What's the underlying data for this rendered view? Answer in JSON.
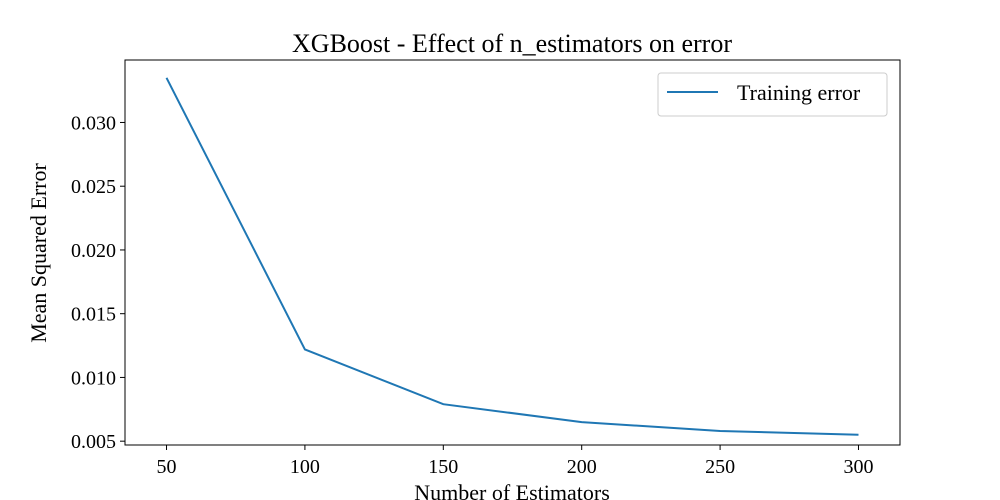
{
  "chart_data": {
    "type": "line",
    "title": "XGBoost - Effect of n_estimators on error",
    "xlabel": "Number of Estimators",
    "ylabel": "Mean Squared Error",
    "x": [
      50,
      100,
      150,
      200,
      250,
      300
    ],
    "series": [
      {
        "name": "Training error",
        "values": [
          0.0335,
          0.0122,
          0.0079,
          0.0065,
          0.0058,
          0.0055
        ],
        "color": "#1f77b4"
      }
    ],
    "xlim": [
      35,
      315
    ],
    "ylim": [
      0.0047,
      0.0349
    ],
    "xticks": [
      50,
      100,
      150,
      200,
      250,
      300
    ],
    "xtick_labels": [
      "50",
      "100",
      "150",
      "200",
      "250",
      "300"
    ],
    "yticks": [
      0.005,
      0.01,
      0.015,
      0.02,
      0.025,
      0.03
    ],
    "ytick_labels": [
      "0.005",
      "0.010",
      "0.015",
      "0.020",
      "0.025",
      "0.030"
    ],
    "grid": false,
    "legend_position": "top-right"
  }
}
